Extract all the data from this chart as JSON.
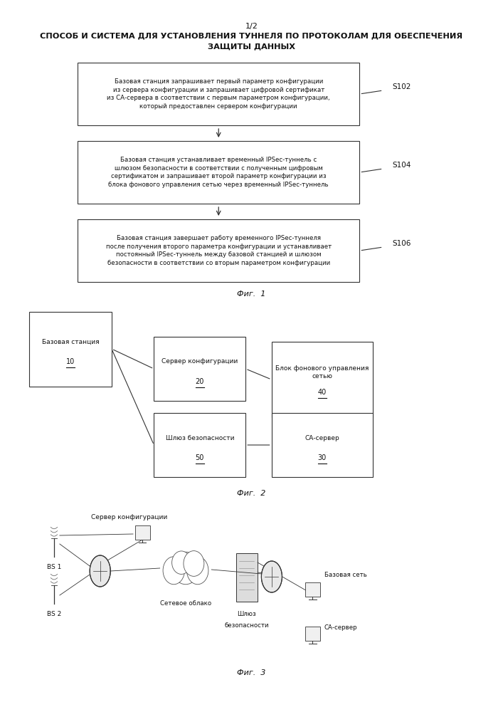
{
  "title_line1": "1/2",
  "title_line2": "СПОСОБ И СИСТЕМА ДЛЯ УСТАНОВЛЕНИЯ ТУННЕЛЯ ПО ПРОТОКОЛАМ ДЛЯ ОБЕСПЕЧЕНИЯ",
  "title_line3": "ЗАЩИТЫ ДАННЫХ",
  "fig1_boxes": [
    {
      "text": "Базовая станция запрашивает первый параметр конфигурации\nиз сервера конфигурации и запрашивает цифровой сертификат\nиз СА-сервера в соответствии с первым параметром конфигурации,\nкоторый предоставлен сервером конфигурации",
      "label": "S102"
    },
    {
      "text": "Базовая станция устанавливает временный IPSec-туннель с\nшлюзом безопасности в соответствии с полученным цифровым\nсертификатом и запрашивает второй параметр конфигурации из\nблока фонового управления сетью через временный IPSec-туннель",
      "label": "S104"
    },
    {
      "text": "Базовая станция завершает работу временного IPSec-туннеля\nпосле получения второго параметра конфигурации и устанавливает\nпостоянный IPSec-туннель между базовой станцией и шлюзом\nбезопасности в соответствии со вторым параметром конфигурации",
      "label": "S106"
    }
  ],
  "fig1_caption": "Фиг.  1",
  "fig2_caption": "Фиг.  2",
  "fig3_caption": "Фиг.  3",
  "background_color": "#ffffff",
  "box_edge_color": "#333333",
  "text_color": "#111111"
}
